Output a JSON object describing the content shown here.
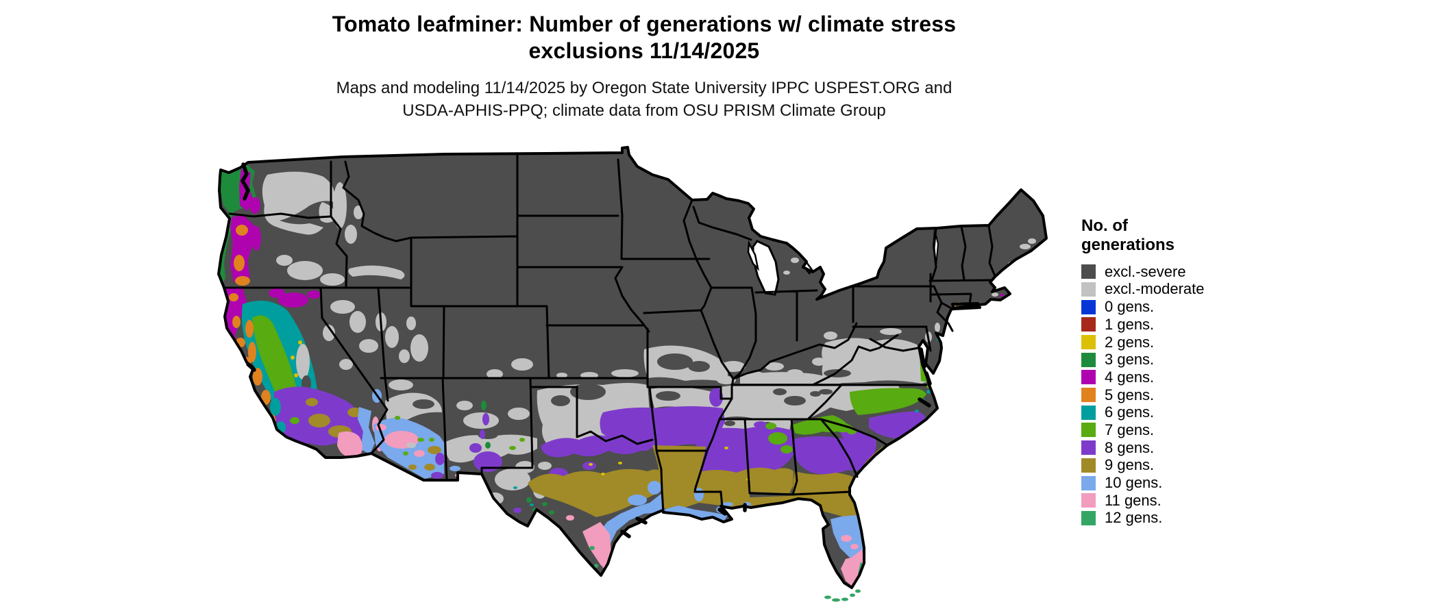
{
  "title": {
    "line1": "Tomato leafminer: Number of generations w/ climate stress",
    "line2": "exclusions 11/14/2025"
  },
  "subtitle": {
    "line1": "Maps and modeling 11/14/2025 by Oregon State University IPPC USPEST.ORG and",
    "line2": "USDA-APHIS-PPQ; climate data from OSU PRISM Climate Group"
  },
  "legend": {
    "title_line1": "No. of",
    "title_line2": "generations",
    "items": [
      {
        "label": "excl.-severe",
        "color": "#4d4d4d"
      },
      {
        "label": "excl.-moderate",
        "color": "#c2c2c2"
      },
      {
        "label": "0 gens.",
        "color": "#0836d6"
      },
      {
        "label": "1 gens.",
        "color": "#a8291b"
      },
      {
        "label": "2 gens.",
        "color": "#dcc005"
      },
      {
        "label": "3 gens.",
        "color": "#1e8b3c"
      },
      {
        "label": "4 gens.",
        "color": "#b003b0"
      },
      {
        "label": "5 gens.",
        "color": "#e0821e"
      },
      {
        "label": "6 gens.",
        "color": "#009e9e"
      },
      {
        "label": "7 gens.",
        "color": "#58ab10"
      },
      {
        "label": "8 gens.",
        "color": "#7e3bcb"
      },
      {
        "label": "9 gens.",
        "color": "#a18a28"
      },
      {
        "label": "10 gens.",
        "color": "#7aa9ec"
      },
      {
        "label": "11 gens.",
        "color": "#f29cbe"
      },
      {
        "label": "12 gens.",
        "color": "#35a566"
      }
    ]
  },
  "map": {
    "region": "Continental United States",
    "background": "#ffffff",
    "land_default": "#4d4d4d",
    "border_color": "#000000",
    "water_color": "#ffffff"
  }
}
